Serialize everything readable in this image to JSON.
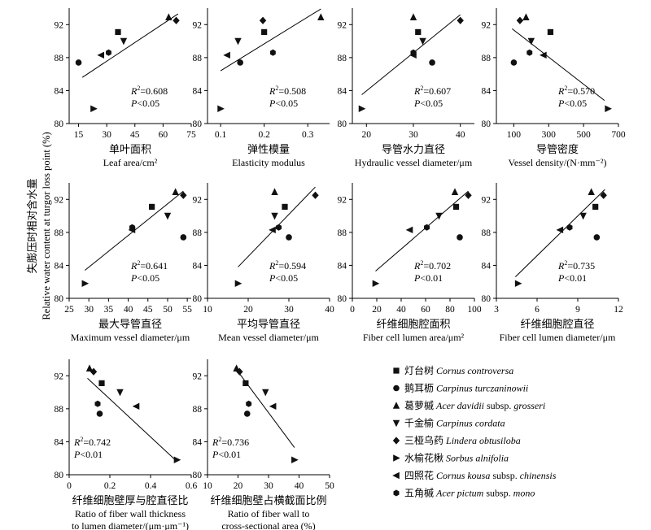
{
  "figure": {
    "ylabel_cn": "失膨压时相对含水量",
    "ylabel_en": "Relative water content at turgor loss point (%)"
  },
  "chart_data": [
    {
      "type": "scatter",
      "xlabel_cn": "单叶面积",
      "xlabel_en": "Leaf area/cm²",
      "xticks": [
        "15",
        "30",
        "45",
        "60",
        "75"
      ],
      "xlim": [
        10,
        75
      ],
      "ylim": [
        80,
        94
      ],
      "yticks": [
        "80",
        "84",
        "88",
        "92"
      ],
      "r2": "R²=0.608",
      "p": "P<0.05",
      "points": [
        {
          "x": 36,
          "y": 91.1,
          "species": "controversa"
        },
        {
          "x": 15,
          "y": 87.4,
          "species": "turczaninowii"
        },
        {
          "x": 63,
          "y": 92.9,
          "species": "davidii"
        },
        {
          "x": 39,
          "y": 90.0,
          "species": "cordata"
        },
        {
          "x": 67,
          "y": 92.5,
          "species": "obtusiloba"
        },
        {
          "x": 23,
          "y": 81.8,
          "species": "alnifolia"
        },
        {
          "x": 27,
          "y": 88.3,
          "species": "kousa"
        },
        {
          "x": 31,
          "y": 88.6,
          "species": "pictum"
        }
      ],
      "trend": [
        [
          17,
          85.6
        ],
        [
          68,
          93.3
        ]
      ]
    },
    {
      "type": "scatter",
      "xlabel_cn": "弹性模量",
      "xlabel_en": "Elasticity modulus",
      "xticks": [
        "0.1",
        "0.2",
        "0.3"
      ],
      "xlim": [
        0.07,
        0.35
      ],
      "ylim": [
        80,
        94
      ],
      "r2": "R²=0.508",
      "p": "P<0.05",
      "points": [
        {
          "x": 0.2,
          "y": 91.1,
          "species": "controversa"
        },
        {
          "x": 0.145,
          "y": 87.4,
          "species": "turczaninowii"
        },
        {
          "x": 0.33,
          "y": 92.9,
          "species": "davidii"
        },
        {
          "x": 0.14,
          "y": 90.0,
          "species": "cordata"
        },
        {
          "x": 0.197,
          "y": 92.5,
          "species": "obtusiloba"
        },
        {
          "x": 0.1,
          "y": 81.8,
          "species": "alnifolia"
        },
        {
          "x": 0.115,
          "y": 88.3,
          "species": "kousa"
        },
        {
          "x": 0.22,
          "y": 88.6,
          "species": "pictum"
        }
      ],
      "trend": [
        [
          0.1,
          86.4
        ],
        [
          0.33,
          93.9
        ]
      ]
    },
    {
      "type": "scatter",
      "xlabel_cn": "导管水力直径",
      "xlabel_en": "Hydraulic vessel diameter/μm",
      "xticks": [
        "20",
        "30",
        "40"
      ],
      "xlim": [
        17,
        43
      ],
      "ylim": [
        80,
        94
      ],
      "r2": "R²=0.607",
      "p": "P<0.05",
      "points": [
        {
          "x": 31,
          "y": 91.1,
          "species": "controversa"
        },
        {
          "x": 34,
          "y": 87.4,
          "species": "turczaninowii"
        },
        {
          "x": 30,
          "y": 92.9,
          "species": "davidii"
        },
        {
          "x": 32,
          "y": 90.0,
          "species": "cordata"
        },
        {
          "x": 40,
          "y": 92.5,
          "species": "obtusiloba"
        },
        {
          "x": 19,
          "y": 81.8,
          "species": "alnifolia"
        },
        {
          "x": 30,
          "y": 88.3,
          "species": "kousa"
        },
        {
          "x": 30,
          "y": 88.6,
          "species": "pictum"
        }
      ],
      "trend": [
        [
          19,
          83.5
        ],
        [
          40,
          93.2
        ]
      ]
    },
    {
      "type": "scatter",
      "xlabel_cn": "导管密度",
      "xlabel_en": "Vessel density/(N·mm⁻²)",
      "xticks": [
        "100",
        "300",
        "500",
        "700"
      ],
      "xlim": [
        0,
        700
      ],
      "ylim": [
        80,
        94
      ],
      "r2": "R²=0.570",
      "p": "P<0.05",
      "points": [
        {
          "x": 310,
          "y": 91.1,
          "species": "controversa"
        },
        {
          "x": 100,
          "y": 87.4,
          "species": "turczaninowii"
        },
        {
          "x": 170,
          "y": 92.9,
          "species": "davidii"
        },
        {
          "x": 200,
          "y": 90.0,
          "species": "cordata"
        },
        {
          "x": 135,
          "y": 92.5,
          "species": "obtusiloba"
        },
        {
          "x": 640,
          "y": 81.8,
          "species": "alnifolia"
        },
        {
          "x": 270,
          "y": 88.3,
          "species": "kousa"
        },
        {
          "x": 190,
          "y": 88.6,
          "species": "pictum"
        }
      ],
      "trend": [
        [
          90,
          91.5
        ],
        [
          620,
          82.8
        ]
      ]
    },
    {
      "type": "scatter",
      "xlabel_cn": "最大导管直径",
      "xlabel_en": "Maximum vessel diameter/μm",
      "xticks": [
        "25",
        "30",
        "35",
        "40",
        "45",
        "50",
        "55"
      ],
      "xlim": [
        25,
        56
      ],
      "ylim": [
        80,
        94
      ],
      "r2": "R²=0.641",
      "p": "P<0.05",
      "points": [
        {
          "x": 46,
          "y": 91.1,
          "species": "controversa"
        },
        {
          "x": 54,
          "y": 87.4,
          "species": "turczaninowii"
        },
        {
          "x": 52,
          "y": 92.9,
          "species": "davidii"
        },
        {
          "x": 50,
          "y": 90.0,
          "species": "cordata"
        },
        {
          "x": 54,
          "y": 92.5,
          "species": "obtusiloba"
        },
        {
          "x": 29,
          "y": 81.8,
          "species": "alnifolia"
        },
        {
          "x": 41,
          "y": 88.3,
          "species": "kousa"
        },
        {
          "x": 41,
          "y": 88.6,
          "species": "pictum"
        }
      ],
      "trend": [
        [
          29,
          83.4
        ],
        [
          54,
          93.0
        ]
      ]
    },
    {
      "type": "scatter",
      "xlabel_cn": "平均导管直径",
      "xlabel_en": "Mean vessel diameter/μm",
      "xticks": [
        "10",
        "20",
        "30",
        "40"
      ],
      "xlim": [
        10,
        40
      ],
      "ylim": [
        80,
        94
      ],
      "r2": "R²=0.594",
      "p": "P<0.05",
      "points": [
        {
          "x": 29,
          "y": 91.1,
          "species": "controversa"
        },
        {
          "x": 30,
          "y": 87.4,
          "species": "turczaninowii"
        },
        {
          "x": 26.5,
          "y": 92.9,
          "species": "davidii"
        },
        {
          "x": 26.5,
          "y": 90.0,
          "species": "cordata"
        },
        {
          "x": 36.5,
          "y": 92.5,
          "species": "obtusiloba"
        },
        {
          "x": 17.5,
          "y": 81.8,
          "species": "alnifolia"
        },
        {
          "x": 26,
          "y": 88.3,
          "species": "kousa"
        },
        {
          "x": 27.5,
          "y": 88.6,
          "species": "pictum"
        }
      ],
      "trend": [
        [
          17.5,
          83.8
        ],
        [
          36.5,
          93.5
        ]
      ]
    },
    {
      "type": "scatter",
      "xlabel_cn": "纤维细胞腔面积",
      "xlabel_en": "Fiber cell lumen area/μm²",
      "xticks": [
        "0",
        "20",
        "40",
        "60",
        "80",
        "100"
      ],
      "xlim": [
        0,
        100
      ],
      "ylim": [
        80,
        94
      ],
      "r2": "R²=0.702",
      "p": "P<0.01",
      "points": [
        {
          "x": 85,
          "y": 91.1,
          "species": "controversa"
        },
        {
          "x": 88,
          "y": 87.4,
          "species": "turczaninowii"
        },
        {
          "x": 84,
          "y": 92.9,
          "species": "davidii"
        },
        {
          "x": 71,
          "y": 90.0,
          "species": "cordata"
        },
        {
          "x": 95,
          "y": 92.5,
          "species": "obtusiloba"
        },
        {
          "x": 19,
          "y": 81.8,
          "species": "alnifolia"
        },
        {
          "x": 47,
          "y": 88.3,
          "species": "kousa"
        },
        {
          "x": 61,
          "y": 88.6,
          "species": "pictum"
        }
      ],
      "trend": [
        [
          19,
          83.3
        ],
        [
          95,
          93.0
        ]
      ]
    },
    {
      "type": "scatter",
      "xlabel_cn": "纤维细胞腔直径",
      "xlabel_en": "Fiber cell lumen diameter/μm",
      "xticks": [
        "3",
        "6",
        "9",
        "12"
      ],
      "xlim": [
        3,
        12
      ],
      "ylim": [
        80,
        94
      ],
      "r2": "R²=0.735",
      "p": "P<0.01",
      "points": [
        {
          "x": 10.3,
          "y": 91.1,
          "species": "controversa"
        },
        {
          "x": 10.4,
          "y": 87.4,
          "species": "turczaninowii"
        },
        {
          "x": 10.0,
          "y": 92.9,
          "species": "davidii"
        },
        {
          "x": 9.4,
          "y": 90.0,
          "species": "cordata"
        },
        {
          "x": 10.9,
          "y": 92.5,
          "species": "obtusiloba"
        },
        {
          "x": 4.6,
          "y": 81.8,
          "species": "alnifolia"
        },
        {
          "x": 7.7,
          "y": 88.3,
          "species": "kousa"
        },
        {
          "x": 8.4,
          "y": 88.6,
          "species": "pictum"
        }
      ],
      "trend": [
        [
          4.4,
          82.6
        ],
        [
          11.0,
          93.2
        ]
      ]
    },
    {
      "type": "scatter",
      "xlabel_cn": "纤维细胞壁厚与腔直径比",
      "xlabel_en": "Ratio of fiber wall thickness",
      "xlabel_en2": "to lumen diameter/(μm·μm⁻¹)",
      "xticks": [
        "0",
        "0.2",
        "0.4",
        "0.6"
      ],
      "xlim": [
        0,
        0.6
      ],
      "ylim": [
        80,
        94
      ],
      "r2": "R²=0.742",
      "p": "P<0.01",
      "points": [
        {
          "x": 0.16,
          "y": 91.1,
          "species": "controversa"
        },
        {
          "x": 0.15,
          "y": 87.4,
          "species": "turczaninowii"
        },
        {
          "x": 0.1,
          "y": 92.9,
          "species": "davidii"
        },
        {
          "x": 0.25,
          "y": 90.0,
          "species": "cordata"
        },
        {
          "x": 0.12,
          "y": 92.5,
          "species": "obtusiloba"
        },
        {
          "x": 0.53,
          "y": 81.8,
          "species": "alnifolia"
        },
        {
          "x": 0.33,
          "y": 88.3,
          "species": "kousa"
        },
        {
          "x": 0.14,
          "y": 88.6,
          "species": "pictum"
        }
      ],
      "trend": [
        [
          0.09,
          91.7
        ],
        [
          0.53,
          81.6
        ]
      ]
    },
    {
      "type": "scatter",
      "xlabel_cn": "纤维细胞壁占横截面比例",
      "xlabel_en": "Ratio of fiber wall to",
      "xlabel_en2": "cross-sectional area (%)",
      "xticks": [
        "10",
        "20",
        "30",
        "40",
        "50"
      ],
      "xlim": [
        10,
        50
      ],
      "ylim": [
        80,
        94
      ],
      "r2": "R²=0.736",
      "p": "P<0.01",
      "points": [
        {
          "x": 22.5,
          "y": 91.1,
          "species": "controversa"
        },
        {
          "x": 23,
          "y": 87.4,
          "species": "turczaninowii"
        },
        {
          "x": 19.5,
          "y": 92.9,
          "species": "davidii"
        },
        {
          "x": 29,
          "y": 90.0,
          "species": "cordata"
        },
        {
          "x": 20.5,
          "y": 92.5,
          "species": "obtusiloba"
        },
        {
          "x": 38.5,
          "y": 81.8,
          "species": "alnifolia"
        },
        {
          "x": 31.5,
          "y": 88.3,
          "species": "kousa"
        },
        {
          "x": 23.5,
          "y": 88.6,
          "species": "pictum"
        }
      ],
      "trend": [
        [
          19,
          93.0
        ],
        [
          38.5,
          83.3
        ]
      ]
    }
  ],
  "legend": {
    "items": [
      {
        "species": "controversa",
        "cn": "灯台树",
        "latin": "Cornus controversa",
        "extra": ""
      },
      {
        "species": "turczaninowii",
        "cn": "鹅耳枥",
        "latin": "Carpinus turczaninowii",
        "extra": ""
      },
      {
        "species": "davidii",
        "cn": "葛萝槭",
        "latin": "Acer davidii",
        "extra": " subsp. grosseri"
      },
      {
        "species": "cordata",
        "cn": "千金榆",
        "latin": "Carpinus cordata",
        "extra": ""
      },
      {
        "species": "obtusiloba",
        "cn": "三桠乌药",
        "latin": "Lindera obtusiloba",
        "extra": ""
      },
      {
        "species": "alnifolia",
        "cn": "水榆花楸",
        "latin": "Sorbus alnifolia",
        "extra": ""
      },
      {
        "species": "kousa",
        "cn": "四照花",
        "latin": "Cornus kousa",
        "extra": " subsp. chinensis"
      },
      {
        "species": "pictum",
        "cn": "五角槭",
        "latin": "Acer pictum",
        "extra": " subsp. mono"
      }
    ]
  },
  "markers": {
    "controversa": "square",
    "turczaninowii": "circle",
    "davidii": "triangle-up",
    "cordata": "triangle-down",
    "obtusiloba": "diamond",
    "alnifolia": "triangle-right",
    "kousa": "triangle-left",
    "pictum": "hexagon"
  }
}
